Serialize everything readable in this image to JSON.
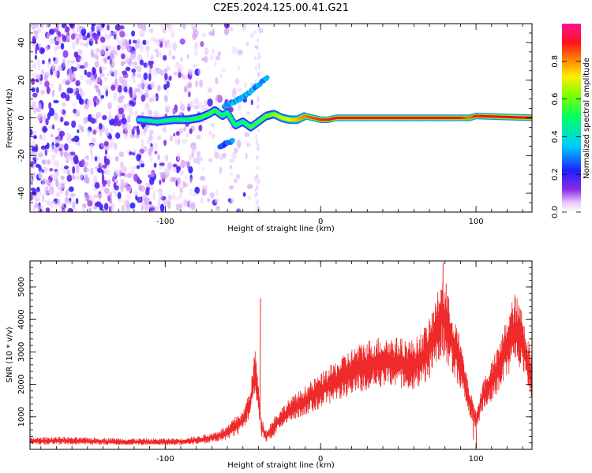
{
  "title": "C2E5.2024.125.00.41.G21",
  "colors": {
    "snr_line": "#ee2a2a",
    "carrier": "#ff2020",
    "noise": "#8a2be2"
  },
  "chart_data": [
    {
      "type": "heatmap",
      "xlabel": "Height of straight line (km)",
      "ylabel": "Frequency (Hz)",
      "xlim": [
        -187,
        136
      ],
      "ylim": [
        -50,
        50
      ],
      "xticks": [
        -100,
        0,
        100
      ],
      "yticks": [
        -40,
        -20,
        0,
        20,
        40
      ],
      "colorbar": {
        "label": "Normalized spectral amplitude",
        "range": [
          0,
          1
        ],
        "ticks": [
          "0.0",
          "0.2",
          "0.4",
          "0.6",
          "0.8"
        ],
        "colormap": "rainbow (white-violet-blue-cyan-green-yellow-red-magenta)"
      },
      "carrier_trace": {
        "x": [
          -117,
          -105,
          -95,
          -85,
          -78,
          -72,
          -68,
          -63,
          -60,
          -55,
          -50,
          -45,
          -40,
          -35,
          -30,
          -25,
          -20,
          -15,
          -10,
          -5,
          0,
          5,
          10,
          30,
          60,
          90,
          96,
          100,
          136
        ],
        "y": [
          -1,
          -2,
          -1,
          -1,
          0,
          2,
          4,
          1,
          3,
          -4,
          -2,
          -5,
          -2,
          1,
          2,
          0,
          -1,
          -1,
          1,
          0,
          -1,
          -1,
          0,
          0,
          0,
          0,
          0,
          1,
          0
        ],
        "amplitude": [
          0.45,
          0.5,
          0.55,
          0.55,
          0.6,
          0.6,
          0.6,
          0.55,
          0.55,
          0.55,
          0.55,
          0.6,
          0.6,
          0.65,
          0.7,
          0.75,
          0.8,
          0.85,
          0.9,
          0.95,
          0.98,
          1.0,
          1.0,
          1.0,
          1.0,
          1.0,
          0.9,
          1.0,
          1.0
        ]
      },
      "features": [
        {
          "x": [
            -62,
            -52,
            -45,
            -38,
            -34
          ],
          "y": [
            6,
            10,
            14,
            19,
            22
          ],
          "amplitude": 0.35
        },
        {
          "x": [
            -65,
            -62,
            -58,
            -56
          ],
          "y": [
            -16,
            -14,
            -13,
            -12
          ],
          "amplitude": 0.3
        }
      ],
      "noise_region": {
        "x": [
          -187,
          -45
        ],
        "y": [
          -50,
          50
        ],
        "amplitude": 0.25
      }
    },
    {
      "type": "line",
      "xlabel": "Height of straight line (km)",
      "ylabel": "SNR (10 * v/v)",
      "xlim": [
        -187,
        136
      ],
      "ylim": [
        0,
        5800
      ],
      "xticks": [
        -100,
        0,
        100
      ],
      "yticks": [
        1000,
        2000,
        3000,
        4000,
        5000
      ],
      "series": [
        {
          "anchors_x": [
            -187,
            -170,
            -150,
            -130,
            -110,
            -90,
            -80,
            -70,
            -60,
            -55,
            -50,
            -45,
            -42,
            -40,
            -38,
            -35,
            -30,
            -25,
            -20,
            -10,
            0,
            10,
            20,
            30,
            40,
            50,
            60,
            65,
            70,
            75,
            78,
            80,
            85,
            90,
            95,
            100,
            105,
            110,
            115,
            120,
            125,
            130,
            136
          ],
          "anchors_y": [
            250,
            270,
            250,
            240,
            230,
            240,
            280,
            350,
            500,
            700,
            900,
            1500,
            2500,
            1500,
            700,
            400,
            700,
            1000,
            1200,
            1500,
            1800,
            2100,
            2400,
            2600,
            2700,
            2650,
            2600,
            2800,
            3100,
            3700,
            4200,
            3900,
            3300,
            2600,
            1600,
            900,
            1700,
            2100,
            2500,
            3200,
            3700,
            3300,
            2200
          ],
          "spikes": [
            {
              "x": -39,
              "y": 4650
            },
            {
              "x": 78.5,
              "y": 5750
            },
            {
              "x": 80.5,
              "y": 5100
            },
            {
              "x": 123,
              "y": 4100
            },
            {
              "x": 100,
              "y": 50
            },
            {
              "x": 98,
              "y": 300
            }
          ]
        }
      ]
    }
  ]
}
